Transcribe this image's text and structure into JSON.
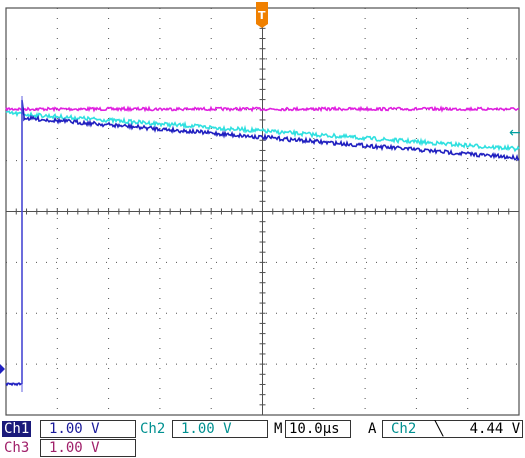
{
  "screen": {
    "background": "#ffffff",
    "grid_color": "#505050",
    "divisions_x": 10,
    "divisions_y": 8
  },
  "trigger": {
    "marker_label": "T",
    "marker_color": "#f08000",
    "level_arrow": "←",
    "level_arrow_color": "#00a0a0"
  },
  "traces": {
    "ch1_color": "#2020c0",
    "ch2_color": "#30e0e0",
    "ch3_color": "#e020e0"
  },
  "status_bar": {
    "ch1_label": "Ch1",
    "ch1_scale": "1.00 V",
    "ch2_label": "Ch2",
    "ch2_scale": "1.00 V",
    "timebase_prefix": "M",
    "timebase": "10.0µs",
    "trigger_mode": "A",
    "trigger_source": "Ch2",
    "trigger_slope": "╲",
    "trigger_level": "4.44 V",
    "ch3_label": "Ch3",
    "ch3_scale": "1.00 V"
  }
}
